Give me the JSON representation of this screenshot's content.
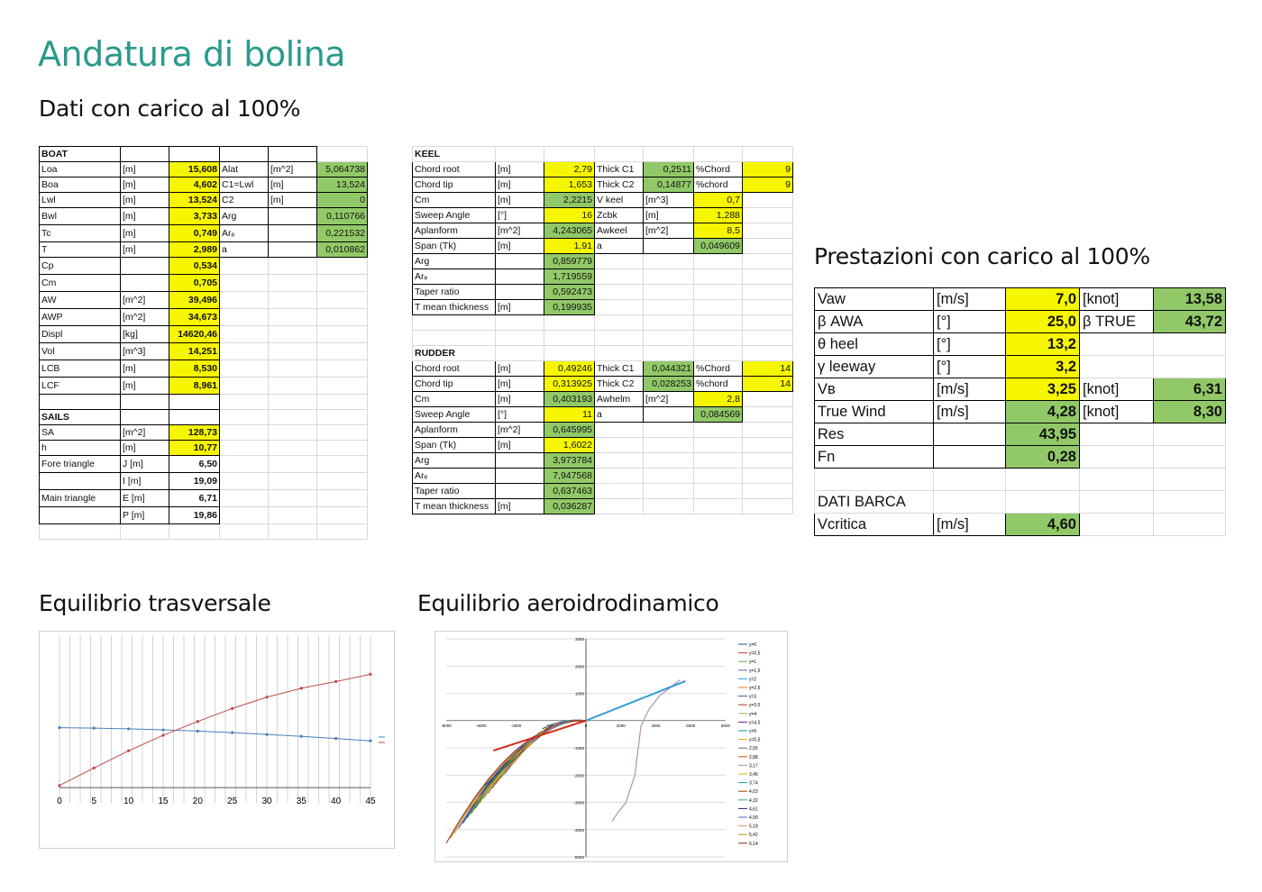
{
  "title": "Andatura di bolina",
  "subtitle_data": "Dati con carico al 100%",
  "subtitle_perf": "Prestazioni con carico al 100%",
  "subtitle_eq_trasv": "Equilibrio trasversale",
  "subtitle_eq_aero": "Equilibrio aeroidrodinamico",
  "boat": {
    "header": "BOAT",
    "rows": [
      [
        "Loa",
        "[m]",
        "15,608",
        "Alat",
        "[m^2]",
        "5,064738"
      ],
      [
        "Boa",
        "[m]",
        "4,602",
        "C1=Lwl",
        "[m]",
        "13,524"
      ],
      [
        "Lwl",
        "[m]",
        "13,524",
        "C2",
        "[m]",
        "0"
      ],
      [
        "Bwl",
        "[m]",
        "3,733",
        "Arɡ",
        "",
        "0,110766"
      ],
      [
        "Tc",
        "[m]",
        "0,749",
        "Arₑ",
        "",
        "0,221532"
      ],
      [
        "T",
        "[m]",
        "2,989",
        "a",
        "",
        "0,010862"
      ],
      [
        "Cp",
        "",
        "0,534",
        "",
        "",
        ""
      ],
      [
        "Cm",
        "",
        "0,705",
        "",
        "",
        ""
      ],
      [
        "AW",
        "[m^2]",
        "39,496",
        "",
        "",
        ""
      ],
      [
        "AWP",
        "[m^2]",
        "34,673",
        "",
        "",
        ""
      ],
      [
        "Displ",
        "[kg]",
        "14620,46",
        "",
        "",
        ""
      ],
      [
        "Vol",
        "[m^3]",
        "14,251",
        "",
        "",
        ""
      ],
      [
        "LCB",
        "[m]",
        "8,530",
        "",
        "",
        ""
      ],
      [
        "LCF",
        "[m]",
        "8,961",
        "",
        "",
        ""
      ]
    ]
  },
  "sails": {
    "header": "SAILS",
    "rows": [
      [
        "SA",
        "[m^2]",
        "128,73"
      ],
      [
        "h",
        "[m]",
        "10,77"
      ],
      [
        "Fore triangle",
        "J [m]",
        "6,50"
      ],
      [
        "",
        "I [m]",
        "19,09"
      ],
      [
        "Main triangle",
        "E [m]",
        "6,71"
      ],
      [
        "",
        "P [m]",
        "19,86"
      ]
    ]
  },
  "keel": {
    "header": "KEEL",
    "rows": [
      [
        "Chord root",
        "[m]",
        "2,79",
        "Thick C1",
        "0,2511",
        "%Chord",
        "9"
      ],
      [
        "Chord tip",
        "[m]",
        "1,653",
        "Thick C2",
        "0,14877",
        "%chord",
        "9"
      ],
      [
        "Cm",
        "[m]",
        "2,2215",
        "V keel",
        "[m^3]",
        "0,7",
        ""
      ],
      [
        "Sweep Angle",
        "[°]",
        "16",
        "Zcbk",
        "[m]",
        "1,288",
        ""
      ],
      [
        "Aplanform",
        "[m^2]",
        "4,243065",
        "Awkeel",
        "[m^2]",
        "8,5",
        ""
      ],
      [
        "Span (Tk)",
        "[m]",
        "1,91",
        "a",
        "",
        "0,049609",
        ""
      ],
      [
        "Arɡ",
        "",
        "0,859779",
        "",
        "",
        "",
        ""
      ],
      [
        "Arₑ",
        "",
        "1,719559",
        "",
        "",
        "",
        ""
      ],
      [
        "Taper ratio",
        "",
        "0,592473",
        "",
        "",
        "",
        ""
      ],
      [
        "T mean thickness",
        "[m]",
        "0,199935",
        "",
        "",
        "",
        ""
      ]
    ]
  },
  "rudder": {
    "header": "RUDDER",
    "rows": [
      [
        "Chord root",
        "[m]",
        "0,49246",
        "Thick C1",
        "0,044321",
        "%Chord",
        "14"
      ],
      [
        "Chord tip",
        "[m]",
        "0,313925",
        "Thick C2",
        "0,028253",
        "%chord",
        "14"
      ],
      [
        "Cm",
        "[m]",
        "0,403193",
        "Awhelm",
        "[m^2]",
        "2,8",
        ""
      ],
      [
        "Sweep Angle",
        "[°]",
        "11",
        "a",
        "",
        "0,084569",
        ""
      ],
      [
        "Aplanform",
        "[m^2]",
        "0,645995",
        "",
        "",
        "",
        ""
      ],
      [
        "Span (Tk)",
        "[m]",
        "1,6022",
        "",
        "",
        "",
        ""
      ],
      [
        "Arɡ",
        "",
        "3,973784",
        "",
        "",
        "",
        ""
      ],
      [
        "Arₑ",
        "",
        "7,947568",
        "",
        "",
        "",
        ""
      ],
      [
        "Taper ratio",
        "",
        "0,637463",
        "",
        "",
        "",
        ""
      ],
      [
        "T mean thickness",
        "[m]",
        "0,036287",
        "",
        "",
        "",
        ""
      ]
    ]
  },
  "perf": {
    "rows": [
      [
        "Vaw",
        "[m/s]",
        "7,0",
        "[knot]",
        "13,58"
      ],
      [
        "β AWA",
        "[°]",
        "25,0",
        "β TRUE",
        "43,72"
      ],
      [
        "θ heel",
        "[°]",
        "13,2",
        "",
        ""
      ],
      [
        "γ leeway",
        "[°]",
        "3,2",
        "",
        ""
      ],
      [
        "Vʙ",
        "[m/s]",
        "3,25",
        "[knot]",
        "6,31"
      ],
      [
        "True Wind",
        "[m/s]",
        "4,28",
        "[knot]",
        "8,30"
      ],
      [
        "Res",
        "",
        "43,95",
        "",
        ""
      ],
      [
        "Fn",
        "",
        "0,28",
        "",
        ""
      ],
      [
        "",
        "",
        "",
        "",
        ""
      ],
      [
        "DATI BARCA",
        "",
        "",
        "",
        ""
      ],
      [
        "Vcritica",
        "[m/s]",
        "4,60",
        "",
        ""
      ]
    ]
  },
  "colors": {
    "title": "#2a9a8c",
    "yellow": "#f6f600",
    "green": "#92c968"
  },
  "chart_data": [
    {
      "type": "line",
      "x": [
        0,
        5,
        10,
        15,
        20,
        25,
        30,
        35,
        40,
        45
      ],
      "series": [
        {
          "name": "",
          "color": "#4a7ebb",
          "values": [
            5900,
            5850,
            5780,
            5680,
            5560,
            5410,
            5230,
            5040,
            4830,
            4600
          ]
        },
        {
          "name": "",
          "color": "#be4b48",
          "values": [
            200,
            1930,
            3620,
            5150,
            6510,
            7780,
            8900,
            9780,
            10440,
            11150
          ]
        }
      ],
      "xticks": [
        "0",
        "5",
        "10",
        "15",
        "20",
        "25",
        "30",
        "35",
        "40",
        "45"
      ],
      "ylim": [
        -1500,
        15000
      ],
      "grid": true
    },
    {
      "type": "line",
      "xlim": [
        -8000,
        8000
      ],
      "ylim": [
        -5000,
        3000
      ],
      "xticks": [
        "-8000",
        "-6000",
        "-4000",
        "-2000",
        "0",
        "2000",
        "4000",
        "6000",
        "8000"
      ],
      "yticks": [
        "3000",
        "2000",
        "1000",
        "0",
        "-1000",
        "-2000",
        "-3000",
        "-4000",
        "-5000"
      ],
      "legend": [
        "y=0",
        "y=0,5",
        "y=1",
        "y=1,5",
        "y=2",
        "y=2,5",
        "y=3",
        "y=3,5",
        "y=4",
        "y=4,5",
        "y=5",
        "y=5,5",
        "2,55",
        "2,88",
        "3,17",
        "3,46",
        "3,74",
        "4,03",
        "4,32",
        "4,61",
        "4,90",
        "5,18",
        "5,42",
        "6,14"
      ],
      "legend_colors": [
        "#1f4e9c",
        "#c0392b",
        "#6aa84f",
        "#7e57c2",
        "#2e9bd6",
        "#e67e22",
        "#3d5a99",
        "#b03a2e",
        "#8bc34a",
        "#6a1b9a",
        "#0097a7",
        "#f39c12",
        "#5d6d7e",
        "#d35400",
        "#95a5a6",
        "#c8b900",
        "#17a589",
        "#a04000",
        "#27ae60",
        "#1a237e",
        "#4a69bd",
        "#e59866",
        "#b7950b",
        "#922b21"
      ],
      "resultant_vector": {
        "x": [
          0,
          5700
        ],
        "y": [
          0,
          1450
        ]
      },
      "heel_curve_x": [
        1500,
        1800,
        2300,
        2800,
        3000,
        3150,
        3600,
        4200,
        5000,
        5400
      ],
      "heel_curve_y": [
        -3700,
        -3400,
        -3000,
        -2000,
        -1000,
        -200,
        400,
        900,
        1300,
        1500
      ]
    }
  ]
}
